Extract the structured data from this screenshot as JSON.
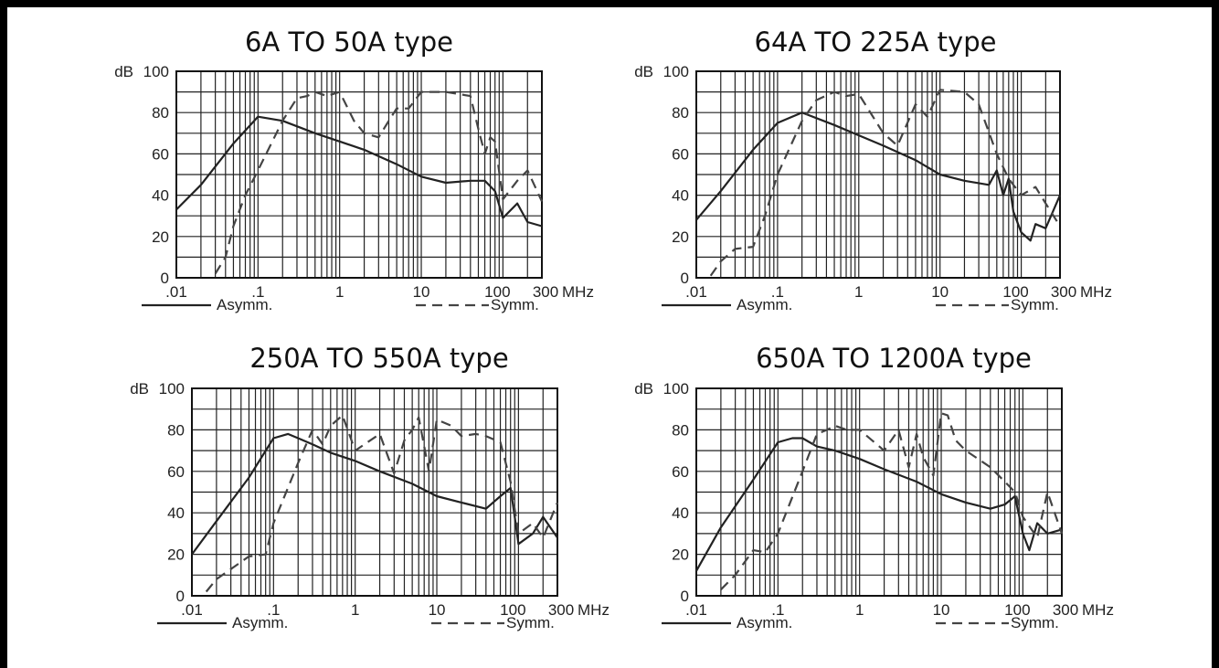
{
  "chart_data": [
    {
      "type": "line",
      "title": "6A TO 50A type",
      "ylabel": "dB",
      "x_unit": "MHz",
      "x_scale": "log",
      "xlim": [
        0.01,
        300
      ],
      "ylim": [
        0,
        100
      ],
      "x_ticks": [
        ".01",
        ".1",
        "1",
        "10",
        "100",
        "300"
      ],
      "y_ticks": [
        "0",
        "20",
        "40",
        "60",
        "80",
        "100"
      ],
      "grid": true,
      "legend": "bottom",
      "series": [
        {
          "name": "Asymm.",
          "style": "solid",
          "x": [
            0.01,
            0.02,
            0.05,
            0.1,
            0.2,
            0.5,
            1,
            2,
            5,
            10,
            20,
            40,
            60,
            80,
            100,
            150,
            200,
            300
          ],
          "y": [
            33,
            45,
            65,
            78,
            76,
            70,
            66,
            62,
            55,
            49,
            46,
            47,
            47,
            42,
            29,
            36,
            27,
            25
          ]
        },
        {
          "name": "Symm.",
          "style": "dashed",
          "x": [
            0.03,
            0.04,
            0.05,
            0.07,
            0.1,
            0.2,
            0.3,
            0.4,
            0.5,
            0.7,
            1,
            1.5,
            2,
            3,
            4,
            5,
            7,
            10,
            20,
            40,
            50,
            60,
            70,
            80,
            100,
            150,
            200,
            300
          ],
          "y": [
            2,
            10,
            25,
            40,
            52,
            76,
            87,
            88,
            90,
            88,
            90,
            76,
            70,
            68,
            76,
            82,
            82,
            90,
            90,
            88,
            72,
            60,
            68,
            66,
            38,
            47,
            52,
            37
          ]
        }
      ]
    },
    {
      "type": "line",
      "title": "64A TO 225A type",
      "ylabel": "dB",
      "x_unit": "MHz",
      "x_scale": "log",
      "xlim": [
        0.01,
        300
      ],
      "ylim": [
        0,
        100
      ],
      "x_ticks": [
        ".01",
        ".1",
        "1",
        "10",
        "100",
        "300"
      ],
      "y_ticks": [
        "0",
        "20",
        "40",
        "60",
        "80",
        "100"
      ],
      "grid": true,
      "legend": "bottom",
      "series": [
        {
          "name": "Asymm.",
          "style": "solid",
          "x": [
            0.01,
            0.02,
            0.05,
            0.1,
            0.2,
            0.5,
            1,
            2,
            5,
            10,
            20,
            40,
            50,
            60,
            70,
            80,
            100,
            130,
            150,
            200,
            300
          ],
          "y": [
            28,
            42,
            62,
            75,
            80,
            74,
            69,
            64,
            57,
            50,
            47,
            45,
            52,
            40,
            48,
            32,
            22,
            18,
            26,
            24,
            40
          ]
        },
        {
          "name": "Symm.",
          "style": "dashed",
          "x": [
            0.015,
            0.02,
            0.03,
            0.05,
            0.07,
            0.1,
            0.2,
            0.3,
            0.5,
            0.7,
            1,
            2,
            3,
            5,
            7,
            10,
            20,
            30,
            50,
            70,
            100,
            150,
            200,
            300
          ],
          "y": [
            1,
            8,
            14,
            15,
            30,
            50,
            76,
            86,
            90,
            88,
            89,
            70,
            64,
            84,
            78,
            91,
            90,
            84,
            60,
            48,
            40,
            44,
            36,
            25
          ]
        }
      ]
    },
    {
      "type": "line",
      "title": "250A TO 550A type",
      "ylabel": "dB",
      "x_unit": "MHz",
      "x_scale": "log",
      "xlim": [
        0.01,
        300
      ],
      "ylim": [
        0,
        100
      ],
      "x_ticks": [
        ".01",
        ".1",
        "1",
        "10",
        "100",
        "300"
      ],
      "y_ticks": [
        "0",
        "20",
        "40",
        "60",
        "80",
        "100"
      ],
      "grid": true,
      "legend": "bottom",
      "series": [
        {
          "name": "Asymm.",
          "style": "solid",
          "x": [
            0.01,
            0.02,
            0.05,
            0.1,
            0.15,
            0.2,
            0.3,
            0.5,
            1,
            2,
            5,
            10,
            20,
            40,
            60,
            80,
            90,
            100,
            150,
            200,
            300
          ],
          "y": [
            20,
            36,
            57,
            76,
            78,
            76,
            73,
            69,
            65,
            60,
            54,
            48,
            45,
            42,
            48,
            52,
            38,
            25,
            30,
            38,
            28
          ]
        },
        {
          "name": "Symm.",
          "style": "dashed",
          "x": [
            0.015,
            0.02,
            0.05,
            0.08,
            0.1,
            0.2,
            0.3,
            0.4,
            0.5,
            0.7,
            1,
            2,
            3,
            4,
            5,
            6,
            8,
            10,
            15,
            20,
            30,
            40,
            60,
            80,
            100,
            150,
            200,
            300
          ],
          "y": [
            2,
            8,
            19,
            20,
            35,
            64,
            80,
            73,
            82,
            87,
            70,
            78,
            59,
            75,
            80,
            86,
            60,
            85,
            82,
            77,
            78,
            77,
            74,
            55,
            30,
            35,
            28,
            45
          ]
        }
      ]
    },
    {
      "type": "line",
      "title": "650A TO 1200A type",
      "ylabel": "dB",
      "x_unit": "MHz",
      "x_scale": "log",
      "xlim": [
        0.01,
        300
      ],
      "ylim": [
        0,
        100
      ],
      "x_ticks": [
        ".01",
        ".1",
        "1",
        "10",
        "100",
        "300"
      ],
      "y_ticks": [
        "0",
        "20",
        "40",
        "60",
        "80",
        "100"
      ],
      "grid": true,
      "legend": "bottom",
      "series": [
        {
          "name": "Asymm.",
          "style": "solid",
          "x": [
            0.01,
            0.02,
            0.05,
            0.1,
            0.15,
            0.2,
            0.3,
            0.5,
            1,
            2,
            5,
            10,
            20,
            40,
            60,
            80,
            100,
            120,
            150,
            200,
            300
          ],
          "y": [
            12,
            33,
            56,
            74,
            76,
            76,
            72,
            70,
            66,
            61,
            55,
            49,
            45,
            42,
            44,
            48,
            30,
            22,
            35,
            30,
            32
          ]
        },
        {
          "name": "Symm.",
          "style": "dashed",
          "x": [
            0.02,
            0.03,
            0.05,
            0.07,
            0.1,
            0.2,
            0.3,
            0.4,
            0.5,
            0.7,
            1,
            2,
            3,
            4,
            5,
            6,
            8,
            10,
            12,
            15,
            20,
            40,
            60,
            80,
            100,
            150,
            200,
            300
          ],
          "y": [
            3,
            10,
            22,
            21,
            30,
            60,
            78,
            80,
            82,
            80,
            80,
            70,
            80,
            62,
            78,
            67,
            58,
            88,
            87,
            75,
            70,
            62,
            55,
            50,
            38,
            28,
            50,
            30
          ]
        }
      ]
    }
  ]
}
